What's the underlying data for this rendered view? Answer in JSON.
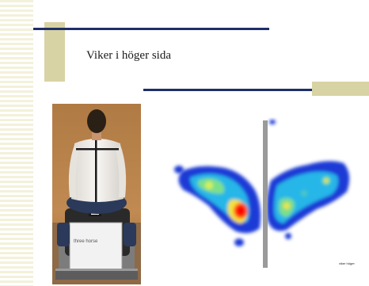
{
  "slide": {
    "title": "Viker i höger sida",
    "caption": "viker höger",
    "brand_text": "three horse"
  },
  "colors": {
    "stripe": "#f3f1da",
    "accent": "#d8d3a4",
    "rule": "#1d2f6a",
    "pressure_low": "#1f3bd6",
    "pressure_high": "#ff0000"
  }
}
